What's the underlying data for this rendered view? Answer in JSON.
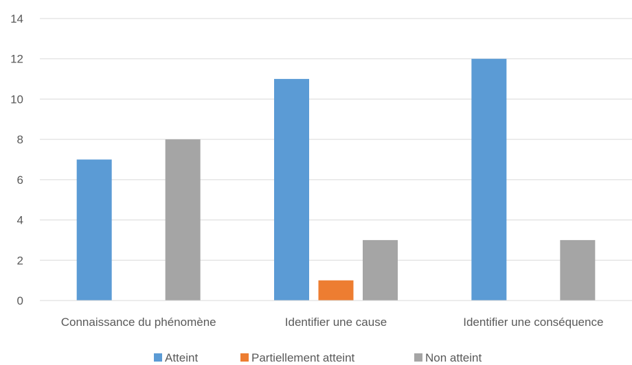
{
  "chart_data": {
    "type": "bar",
    "title": "",
    "xlabel": "",
    "ylabel": "",
    "categories": [
      "Connaissance du phénomène",
      "Identifier une cause",
      "Identifier une conséquence"
    ],
    "series": [
      {
        "name": "Atteint",
        "color": "#5B9BD5",
        "values": [
          7,
          11,
          12
        ]
      },
      {
        "name": "Partiellement atteint",
        "color": "#ED7D31",
        "values": [
          0,
          1,
          0
        ]
      },
      {
        "name": "Non atteint",
        "color": "#A5A5A5",
        "values": [
          8,
          3,
          3
        ]
      }
    ],
    "ylim": [
      0,
      14
    ],
    "yticks": [
      0,
      2,
      4,
      6,
      8,
      10,
      12,
      14
    ],
    "grid": true,
    "legend_position": "bottom"
  }
}
